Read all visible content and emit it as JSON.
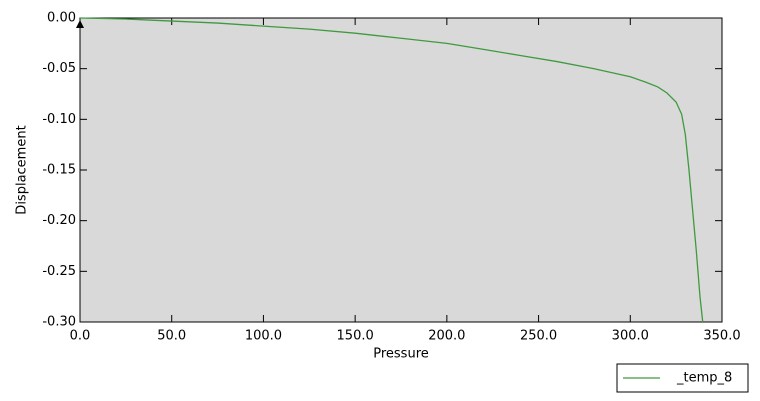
{
  "chart_data": {
    "type": "line",
    "x_label": "Pressure",
    "y_label": "Displacement",
    "x": [
      0,
      25,
      50,
      75,
      100,
      125,
      150,
      175,
      200,
      220,
      240,
      260,
      280,
      300,
      308,
      315,
      320,
      325,
      328,
      330,
      332,
      334,
      336,
      338,
      339.5
    ],
    "series": [
      {
        "name": "_temp_8",
        "color": "#3f9a3f",
        "values": [
          0,
          -0.001,
          -0.003,
          -0.005,
          -0.008,
          -0.011,
          -0.015,
          -0.02,
          -0.025,
          -0.031,
          -0.037,
          -0.043,
          -0.05,
          -0.058,
          -0.063,
          -0.068,
          -0.074,
          -0.083,
          -0.095,
          -0.115,
          -0.15,
          -0.19,
          -0.23,
          -0.275,
          -0.3
        ]
      }
    ],
    "xlim": [
      0,
      350
    ],
    "ylim": [
      -0.3,
      0
    ],
    "xticks": [
      {
        "value": 0,
        "label": "0.0"
      },
      {
        "value": 50,
        "label": "50.0"
      },
      {
        "value": 100,
        "label": "100.0"
      },
      {
        "value": 150,
        "label": "150.0"
      },
      {
        "value": 200,
        "label": "200.0"
      },
      {
        "value": 250,
        "label": "250.0"
      },
      {
        "value": 300,
        "label": "300.0"
      },
      {
        "value": 350,
        "label": "350.0"
      }
    ],
    "yticks": [
      {
        "value": 0,
        "label": "0.00"
      },
      -0.05,
      {
        "value": -0.1,
        "label": "-0.10"
      },
      -0.15,
      {
        "value": -0.2,
        "label": "-0.20"
      },
      -0.25,
      {
        "value": -0.3,
        "label": "-0.30"
      }
    ],
    "legend": "bottom-right"
  }
}
